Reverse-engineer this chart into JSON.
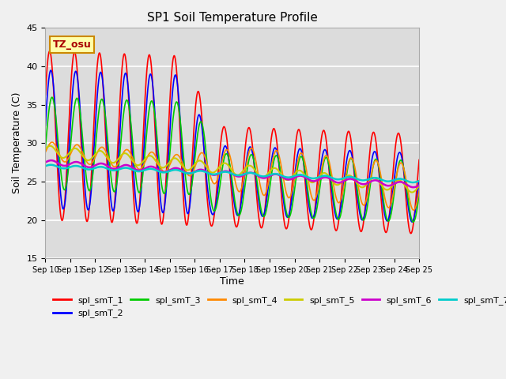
{
  "title": "SP1 Soil Temperature Profile",
  "xlabel": "Time",
  "ylabel": "Soil Temperature (C)",
  "ylim": [
    15,
    45
  ],
  "annotation": "TZ_osu",
  "series_colors": {
    "spl_smT_1": "#ff0000",
    "spl_smT_2": "#0000ff",
    "spl_smT_3": "#00cc00",
    "spl_smT_4": "#ff8800",
    "spl_smT_5": "#cccc00",
    "spl_smT_6": "#cc00cc",
    "spl_smT_7": "#00cccc"
  },
  "x_tick_labels": [
    "Sep 10",
    "Sep 11",
    "Sep 12",
    "Sep 13",
    "Sep 14",
    "Sep 15",
    "Sep 16",
    "Sep 17",
    "Sep 18",
    "Sep 19",
    "Sep 20",
    "Sep 21",
    "Sep 22",
    "Sep 23",
    "Sep 24",
    "Sep 25"
  ],
  "background_color": "#dcdcdc",
  "plot_bg_color": "#dcdcdc"
}
